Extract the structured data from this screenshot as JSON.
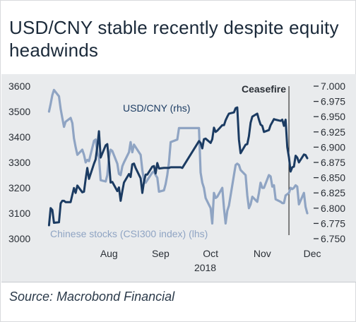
{
  "title": "USD/CNY stable recently despite equity headwinds",
  "source": "Source: Macrobond Financial",
  "colors": {
    "background": "#e9ebed",
    "usdcny": "#1b3b62",
    "csi300": "#8fa4c3",
    "annotation": "#111111"
  },
  "chart_data": {
    "type": "line",
    "x_axis": {
      "type": "date",
      "range": [
        "2018-07-09",
        "2018-12-12"
      ],
      "ticks": [
        "Aug",
        "Sep",
        "Oct",
        "Nov",
        "Dec"
      ],
      "tick_dates": [
        "2018-08-15",
        "2018-09-15",
        "2018-10-15",
        "2018-11-15",
        "2018-12-15"
      ],
      "year_label": "2018"
    },
    "y_left": {
      "ylim": [
        3000,
        3600
      ],
      "ticks": [
        "3000",
        "3100",
        "3200",
        "3300",
        "3400",
        "3500",
        "3600"
      ]
    },
    "y_right": {
      "ylim": [
        6.75,
        7.0
      ],
      "ticks": [
        "6.750",
        "6.775",
        "6.800",
        "6.825",
        "6.850",
        "6.875",
        "6.900",
        "6.925",
        "6.950",
        "6.975",
        "7.000"
      ]
    },
    "annotation": {
      "text": "Ceasefire",
      "date": "2018-12-01"
    },
    "series": [
      {
        "name": "USD/CNY (rhs)",
        "axis": "right",
        "points": [
          [
            "2018-07-10",
            6.772
          ],
          [
            "2018-07-11",
            6.8
          ],
          [
            "2018-07-12",
            6.797
          ],
          [
            "2018-07-13",
            6.776
          ],
          [
            "2018-07-16",
            6.777
          ],
          [
            "2018-07-17",
            6.808
          ],
          [
            "2018-07-18",
            6.812
          ],
          [
            "2018-07-19",
            6.812
          ],
          [
            "2018-07-20",
            6.81
          ],
          [
            "2018-07-23",
            6.81
          ],
          [
            "2018-07-24",
            6.822
          ],
          [
            "2018-07-25",
            6.833
          ],
          [
            "2018-07-26",
            6.825
          ],
          [
            "2018-07-27",
            6.837
          ],
          [
            "2018-07-30",
            6.826
          ],
          [
            "2018-07-31",
            6.827
          ],
          [
            "2018-08-01",
            6.848
          ],
          [
            "2018-08-02",
            6.866
          ],
          [
            "2018-08-03",
            6.848
          ],
          [
            "2018-08-06",
            6.873
          ],
          [
            "2018-08-07",
            6.88
          ],
          [
            "2018-08-08",
            6.901
          ],
          [
            "2018-08-09",
            6.926
          ],
          [
            "2018-08-10",
            6.883
          ],
          [
            "2018-08-13",
            6.903
          ],
          [
            "2018-08-14",
            6.905
          ],
          [
            "2018-08-15",
            6.876
          ],
          [
            "2018-08-16",
            6.842
          ],
          [
            "2018-08-17",
            6.843
          ],
          [
            "2018-08-20",
            6.828
          ],
          [
            "2018-08-21",
            6.834
          ],
          [
            "2018-08-22",
            6.812
          ],
          [
            "2018-08-23",
            6.828
          ],
          [
            "2018-08-24",
            6.842
          ],
          [
            "2018-08-27",
            6.856
          ],
          [
            "2018-08-28",
            6.851
          ],
          [
            "2018-08-29",
            6.872
          ],
          [
            "2018-08-30",
            6.873
          ],
          [
            "2018-08-31",
            6.866
          ],
          [
            "2018-09-03",
            6.849
          ],
          [
            "2018-09-04",
            6.825
          ],
          [
            "2018-09-05",
            6.843
          ],
          [
            "2018-09-06",
            6.855
          ],
          [
            "2018-09-07",
            6.855
          ],
          [
            "2018-09-10",
            6.868
          ],
          [
            "2018-09-11",
            6.869
          ],
          [
            "2018-09-12",
            6.857
          ],
          [
            "2018-09-13",
            6.874
          ],
          [
            "2018-09-14",
            6.865
          ],
          [
            "2018-09-17",
            6.866
          ],
          [
            "2018-09-18",
            6.866
          ],
          [
            "2018-09-19",
            6.866
          ],
          [
            "2018-09-20",
            6.866
          ],
          [
            "2018-09-21",
            6.867
          ],
          [
            "2018-09-25",
            6.867
          ],
          [
            "2018-09-26",
            6.867
          ],
          [
            "2018-09-27",
            6.867
          ],
          [
            "2018-09-28",
            6.866
          ],
          [
            "2018-10-08",
            6.91
          ],
          [
            "2018-10-09",
            6.907
          ],
          [
            "2018-10-10",
            6.898
          ],
          [
            "2018-10-11",
            6.913
          ],
          [
            "2018-10-12",
            6.914
          ],
          [
            "2018-10-15",
            6.907
          ],
          [
            "2018-10-16",
            6.913
          ],
          [
            "2018-10-17",
            6.932
          ],
          [
            "2018-10-18",
            6.925
          ],
          [
            "2018-10-19",
            6.927
          ],
          [
            "2018-10-22",
            6.936
          ],
          [
            "2018-10-23",
            6.936
          ],
          [
            "2018-10-24",
            6.944
          ],
          [
            "2018-10-25",
            6.95
          ],
          [
            "2018-10-26",
            6.955
          ],
          [
            "2018-10-29",
            6.957
          ],
          [
            "2018-10-30",
            6.964
          ],
          [
            "2018-10-31",
            6.965
          ],
          [
            "2018-11-01",
            6.912
          ],
          [
            "2018-11-02",
            6.89
          ],
          [
            "2018-11-05",
            6.904
          ],
          [
            "2018-11-06",
            6.905
          ],
          [
            "2018-11-07",
            6.918
          ],
          [
            "2018-11-08",
            6.94
          ],
          [
            "2018-11-09",
            6.95
          ],
          [
            "2018-11-12",
            6.955
          ],
          [
            "2018-11-13",
            6.945
          ],
          [
            "2018-11-14",
            6.937
          ],
          [
            "2018-11-15",
            6.935
          ],
          [
            "2018-11-16",
            6.925
          ],
          [
            "2018-11-19",
            6.928
          ],
          [
            "2018-11-20",
            6.936
          ],
          [
            "2018-11-21",
            6.941
          ],
          [
            "2018-11-22",
            6.946
          ],
          [
            "2018-11-23",
            6.945
          ],
          [
            "2018-11-26",
            6.943
          ],
          [
            "2018-11-27",
            6.945
          ],
          [
            "2018-11-28",
            6.935
          ],
          [
            "2018-11-29",
            6.945
          ],
          [
            "2018-11-30",
            6.9
          ],
          [
            "2018-12-01",
            6.883
          ],
          [
            "2018-12-02",
            6.86
          ],
          [
            "2018-12-03",
            6.867
          ],
          [
            "2018-12-04",
            6.868
          ],
          [
            "2018-12-05",
            6.886
          ],
          [
            "2018-12-06",
            6.883
          ],
          [
            "2018-12-07",
            6.875
          ],
          [
            "2018-12-10",
            6.888
          ],
          [
            "2018-12-11",
            6.887
          ],
          [
            "2018-12-12",
            6.882
          ]
        ]
      },
      {
        "name": "Chinese stocks (CSI300 index) (lhs)",
        "axis": "left",
        "points": [
          [
            "2018-07-10",
            3500
          ],
          [
            "2018-07-11",
            3530
          ],
          [
            "2018-07-12",
            3565
          ],
          [
            "2018-07-13",
            3585
          ],
          [
            "2018-07-16",
            3560
          ],
          [
            "2018-07-17",
            3510
          ],
          [
            "2018-07-18",
            3475
          ],
          [
            "2018-07-19",
            3440
          ],
          [
            "2018-07-20",
            3460
          ],
          [
            "2018-07-23",
            3475
          ],
          [
            "2018-07-24",
            3455
          ],
          [
            "2018-07-25",
            3395
          ],
          [
            "2018-07-26",
            3360
          ],
          [
            "2018-07-27",
            3330
          ],
          [
            "2018-07-30",
            3350
          ],
          [
            "2018-07-31",
            3330
          ],
          [
            "2018-08-01",
            3300
          ],
          [
            "2018-08-02",
            3310
          ],
          [
            "2018-08-03",
            3305
          ],
          [
            "2018-08-06",
            3385
          ],
          [
            "2018-08-07",
            3390
          ],
          [
            "2018-08-08",
            3340
          ],
          [
            "2018-08-09",
            3320
          ],
          [
            "2018-08-10",
            3230
          ],
          [
            "2018-08-13",
            3225
          ],
          [
            "2018-08-14",
            3250
          ],
          [
            "2018-08-15",
            3320
          ],
          [
            "2018-08-16",
            3350
          ],
          [
            "2018-08-17",
            3345
          ],
          [
            "2018-08-20",
            3295
          ],
          [
            "2018-08-21",
            3255
          ],
          [
            "2018-08-22",
            3250
          ],
          [
            "2018-08-23",
            3285
          ],
          [
            "2018-08-24",
            3300
          ],
          [
            "2018-08-27",
            3340
          ],
          [
            "2018-08-28",
            3380
          ],
          [
            "2018-08-29",
            3340
          ],
          [
            "2018-08-30",
            3370
          ],
          [
            "2018-08-31",
            3360
          ],
          [
            "2018-09-03",
            3330
          ],
          [
            "2018-09-04",
            3270
          ],
          [
            "2018-09-05",
            3230
          ],
          [
            "2018-09-06",
            3220
          ],
          [
            "2018-09-07",
            3230
          ],
          [
            "2018-09-10",
            3260
          ],
          [
            "2018-09-11",
            3265
          ],
          [
            "2018-09-12",
            3250
          ],
          [
            "2018-09-13",
            3240
          ],
          [
            "2018-09-14",
            3185
          ],
          [
            "2018-09-17",
            3190
          ],
          [
            "2018-09-18",
            3215
          ],
          [
            "2018-09-19",
            3250
          ],
          [
            "2018-09-20",
            3300
          ],
          [
            "2018-09-21",
            3380
          ],
          [
            "2018-09-25",
            3390
          ],
          [
            "2018-09-26",
            3435
          ],
          [
            "2018-09-27",
            3435
          ],
          [
            "2018-09-28",
            3435
          ],
          [
            "2018-10-08",
            3435
          ],
          [
            "2018-10-09",
            3260
          ],
          [
            "2018-10-10",
            3220
          ],
          [
            "2018-10-11",
            3200
          ],
          [
            "2018-10-12",
            3160
          ],
          [
            "2018-10-15",
            3120
          ],
          [
            "2018-10-16",
            3060
          ],
          [
            "2018-10-17",
            3180
          ],
          [
            "2018-10-18",
            3160
          ],
          [
            "2018-10-19",
            3165
          ],
          [
            "2018-10-22",
            3200
          ],
          [
            "2018-10-23",
            3120
          ],
          [
            "2018-10-24",
            3060
          ],
          [
            "2018-10-25",
            3110
          ],
          [
            "2018-10-26",
            3130
          ],
          [
            "2018-10-29",
            3250
          ],
          [
            "2018-10-30",
            3290
          ],
          [
            "2018-10-31",
            3295
          ],
          [
            "2018-11-01",
            3290
          ],
          [
            "2018-11-02",
            3270
          ],
          [
            "2018-11-05",
            3250
          ],
          [
            "2018-11-06",
            3170
          ],
          [
            "2018-11-07",
            3120
          ],
          [
            "2018-11-08",
            3135
          ],
          [
            "2018-11-09",
            3165
          ],
          [
            "2018-11-12",
            3145
          ],
          [
            "2018-11-13",
            3180
          ],
          [
            "2018-11-14",
            3220
          ],
          [
            "2018-11-15",
            3200
          ],
          [
            "2018-11-16",
            3200
          ],
          [
            "2018-11-19",
            3250
          ],
          [
            "2018-11-20",
            3245
          ],
          [
            "2018-11-21",
            3205
          ],
          [
            "2018-11-22",
            3210
          ],
          [
            "2018-11-23",
            3155
          ],
          [
            "2018-11-26",
            3145
          ],
          [
            "2018-11-27",
            3140
          ],
          [
            "2018-11-28",
            3140
          ],
          [
            "2018-11-29",
            3170
          ],
          [
            "2018-11-30",
            3175
          ],
          [
            "2018-12-01",
            3180
          ],
          [
            "2018-12-02",
            3200
          ],
          [
            "2018-12-03",
            3195
          ],
          [
            "2018-12-04",
            3200
          ],
          [
            "2018-12-05",
            3210
          ],
          [
            "2018-12-06",
            3205
          ],
          [
            "2018-12-07",
            3135
          ],
          [
            "2018-12-10",
            3180
          ],
          [
            "2018-12-11",
            3125
          ],
          [
            "2018-12-12",
            3100
          ]
        ]
      }
    ]
  }
}
